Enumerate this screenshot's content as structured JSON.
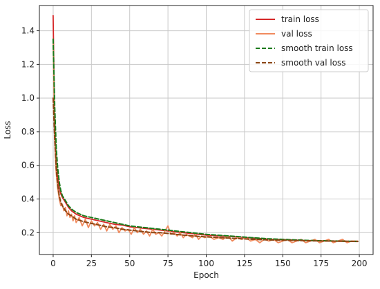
{
  "chart_data": {
    "type": "line",
    "title": "",
    "xlabel": "Epoch",
    "ylabel": "Loss",
    "xlim": [
      -9,
      209
    ],
    "ylim": [
      0.07,
      1.55
    ],
    "xticks": [
      0,
      25,
      50,
      75,
      100,
      125,
      150,
      175,
      200
    ],
    "yticks": [
      0.2,
      0.4,
      0.6,
      0.8,
      1.0,
      1.2,
      1.4
    ],
    "ytick_labels": [
      "0.2",
      "0.4",
      "0.6",
      "0.8",
      "1.0",
      "1.2",
      "1.4"
    ],
    "grid": true,
    "legend_position": "top-right",
    "series": [
      {
        "name": "train loss",
        "color": "#d62728",
        "style": "solid",
        "x": [
          0,
          1,
          2,
          3,
          4,
          5,
          6,
          8,
          10,
          12,
          15,
          20,
          25,
          30,
          35,
          40,
          45,
          50,
          55,
          60,
          65,
          70,
          75,
          80,
          85,
          90,
          95,
          100,
          110,
          120,
          130,
          140,
          150,
          160,
          170,
          180,
          190,
          199
        ],
        "y": [
          1.49,
          0.82,
          0.6,
          0.52,
          0.47,
          0.43,
          0.41,
          0.38,
          0.35,
          0.33,
          0.31,
          0.29,
          0.28,
          0.27,
          0.26,
          0.25,
          0.245,
          0.235,
          0.23,
          0.225,
          0.22,
          0.215,
          0.21,
          0.205,
          0.2,
          0.195,
          0.19,
          0.185,
          0.18,
          0.175,
          0.168,
          0.162,
          0.158,
          0.155,
          0.152,
          0.15,
          0.148,
          0.147
        ]
      },
      {
        "name": "val loss",
        "color": "#f08a5d",
        "style": "solid",
        "x": [
          0,
          1,
          2,
          3,
          4,
          5,
          6,
          7,
          8,
          9,
          10,
          11,
          12,
          13,
          14,
          15,
          17,
          19,
          21,
          23,
          25,
          27,
          29,
          31,
          33,
          35,
          37,
          39,
          41,
          43,
          45,
          47,
          49,
          51,
          53,
          55,
          57,
          59,
          61,
          63,
          65,
          67,
          69,
          71,
          73,
          75,
          77,
          79,
          81,
          83,
          85,
          87,
          89,
          91,
          93,
          95,
          97,
          99,
          102,
          105,
          108,
          111,
          114,
          117,
          120,
          123,
          126,
          129,
          132,
          135,
          138,
          141,
          144,
          147,
          150,
          153,
          156,
          159,
          162,
          165,
          168,
          171,
          174,
          177,
          180,
          183,
          186,
          189,
          192,
          195,
          199
        ],
        "y": [
          1.35,
          0.75,
          0.55,
          0.46,
          0.4,
          0.36,
          0.37,
          0.33,
          0.35,
          0.3,
          0.33,
          0.29,
          0.31,
          0.27,
          0.3,
          0.26,
          0.29,
          0.24,
          0.28,
          0.23,
          0.27,
          0.24,
          0.26,
          0.22,
          0.25,
          0.21,
          0.25,
          0.22,
          0.24,
          0.2,
          0.23,
          0.21,
          0.22,
          0.19,
          0.23,
          0.2,
          0.22,
          0.19,
          0.21,
          0.18,
          0.22,
          0.19,
          0.2,
          0.18,
          0.21,
          0.24,
          0.19,
          0.2,
          0.18,
          0.2,
          0.17,
          0.19,
          0.18,
          0.17,
          0.19,
          0.16,
          0.18,
          0.17,
          0.18,
          0.16,
          0.17,
          0.16,
          0.18,
          0.15,
          0.17,
          0.16,
          0.17,
          0.15,
          0.16,
          0.14,
          0.16,
          0.15,
          0.16,
          0.14,
          0.15,
          0.16,
          0.14,
          0.15,
          0.16,
          0.14,
          0.15,
          0.16,
          0.14,
          0.15,
          0.16,
          0.14,
          0.15,
          0.16,
          0.14,
          0.15,
          0.15
        ]
      },
      {
        "name": "smooth train loss",
        "color": "#1a7a1a",
        "style": "dashed",
        "x": [
          0,
          1,
          2,
          3,
          4,
          5,
          6,
          8,
          10,
          12,
          15,
          20,
          25,
          30,
          35,
          40,
          45,
          50,
          55,
          60,
          65,
          70,
          75,
          80,
          85,
          90,
          95,
          100,
          110,
          120,
          130,
          140,
          150,
          160,
          170,
          180,
          190,
          199
        ],
        "y": [
          1.35,
          0.95,
          0.7,
          0.58,
          0.5,
          0.45,
          0.42,
          0.39,
          0.36,
          0.34,
          0.32,
          0.3,
          0.29,
          0.28,
          0.27,
          0.26,
          0.25,
          0.24,
          0.235,
          0.23,
          0.225,
          0.22,
          0.215,
          0.21,
          0.205,
          0.2,
          0.195,
          0.19,
          0.183,
          0.177,
          0.17,
          0.164,
          0.16,
          0.156,
          0.153,
          0.151,
          0.149,
          0.148
        ]
      },
      {
        "name": "smooth val loss",
        "color": "#8b4513",
        "style": "dashed",
        "x": [
          0,
          1,
          2,
          3,
          4,
          5,
          6,
          8,
          10,
          12,
          15,
          20,
          25,
          30,
          35,
          40,
          45,
          50,
          55,
          60,
          65,
          70,
          75,
          80,
          85,
          90,
          95,
          100,
          110,
          120,
          130,
          140,
          150,
          160,
          170,
          180,
          190,
          199
        ],
        "y": [
          1.0,
          0.75,
          0.58,
          0.48,
          0.42,
          0.38,
          0.36,
          0.33,
          0.31,
          0.3,
          0.28,
          0.265,
          0.255,
          0.245,
          0.235,
          0.23,
          0.22,
          0.215,
          0.21,
          0.205,
          0.2,
          0.2,
          0.195,
          0.19,
          0.185,
          0.182,
          0.178,
          0.175,
          0.17,
          0.165,
          0.16,
          0.157,
          0.155,
          0.153,
          0.151,
          0.15,
          0.149,
          0.148
        ]
      }
    ]
  }
}
